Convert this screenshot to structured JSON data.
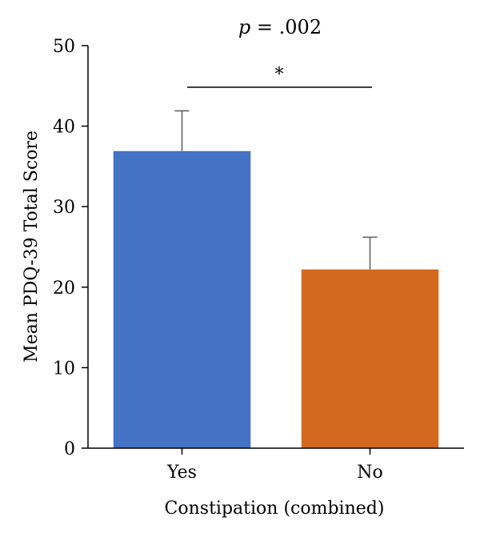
{
  "chart_data": {
    "type": "bar",
    "title": "",
    "xlabel": "Constipation (combined)",
    "ylabel": "Mean PDQ-39 Total Score",
    "categories": [
      "Yes",
      "No"
    ],
    "values": [
      36.9,
      22.2
    ],
    "errors": [
      5.0,
      4.0
    ],
    "colors": [
      "#4472C4",
      "#D2691E"
    ],
    "ylim": [
      0,
      50
    ],
    "yticks": [
      0,
      10,
      20,
      30,
      40,
      50
    ],
    "grid": false,
    "legend": "none",
    "annotation": {
      "p_letter": "p",
      "p_rest": " = .002",
      "significance": "*"
    }
  }
}
